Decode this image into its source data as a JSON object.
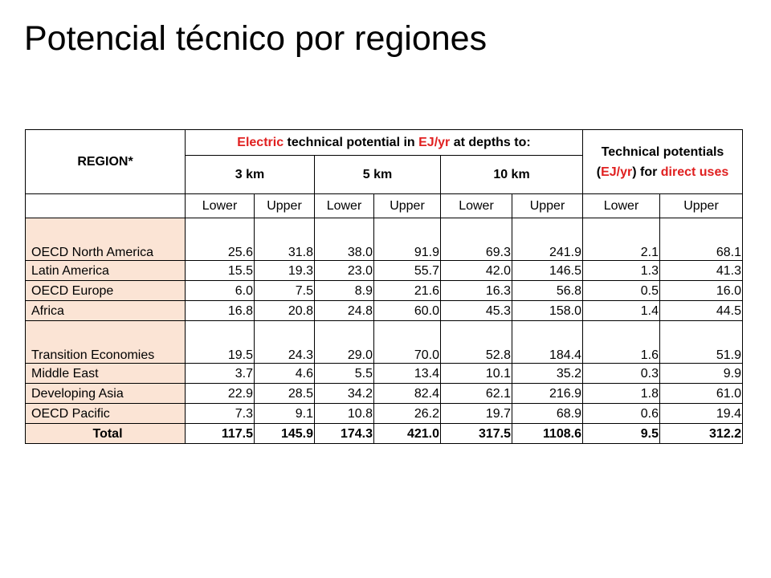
{
  "title": "Potencial técnico por regiones",
  "colors": {
    "accent_red": "#e02020",
    "region_bg": "#fbe4d5"
  },
  "header": {
    "region": "REGION*",
    "electric_prefix": "Electric",
    "electric_mid1": " technical potential in ",
    "electric_unit": "EJ/yr",
    "electric_suffix": " at depths to:",
    "depth_3": "3 km",
    "depth_5": "5 km",
    "depth_10": "10 km",
    "tech_line1": "Technical potentials (",
    "tech_unit": "EJ/yr",
    "tech_line2": ") for ",
    "tech_direct": "direct uses",
    "lower": "Lower",
    "upper": "Upper"
  },
  "rows": [
    {
      "region": "OECD North America",
      "values": [
        "25.6",
        "31.8",
        "38.0",
        "91.9",
        "69.3",
        "241.9",
        "2.1",
        "68.1"
      ]
    },
    {
      "region": "Latin America",
      "values": [
        "15.5",
        "19.3",
        "23.0",
        "55.7",
        "42.0",
        "146.5",
        "1.3",
        "41.3"
      ]
    },
    {
      "region": "OECD Europe",
      "values": [
        "6.0",
        "7.5",
        "8.9",
        "21.6",
        "16.3",
        "56.8",
        "0.5",
        "16.0"
      ]
    },
    {
      "region": "Africa",
      "values": [
        "16.8",
        "20.8",
        "24.8",
        "60.0",
        "45.3",
        "158.0",
        "1.4",
        "44.5"
      ]
    },
    {
      "region": "Transition Economies",
      "values": [
        "19.5",
        "24.3",
        "29.0",
        "70.0",
        "52.8",
        "184.4",
        "1.6",
        "51.9"
      ]
    },
    {
      "region": "Middle East",
      "values": [
        "3.7",
        "4.6",
        "5.5",
        "13.4",
        "10.1",
        "35.2",
        "0.3",
        "9.9"
      ]
    },
    {
      "region": "Developing Asia",
      "values": [
        "22.9",
        "28.5",
        "34.2",
        "82.4",
        "62.1",
        "216.9",
        "1.8",
        "61.0"
      ]
    },
    {
      "region": "OECD Pacific",
      "values": [
        "7.3",
        "9.1",
        "10.8",
        "26.2",
        "19.7",
        "68.9",
        "0.6",
        "19.4"
      ]
    }
  ],
  "total": {
    "region": "Total",
    "values": [
      "117.5",
      "145.9",
      "174.3",
      "421.0",
      "317.5",
      "1108.6",
      "9.5",
      "312.2"
    ]
  }
}
